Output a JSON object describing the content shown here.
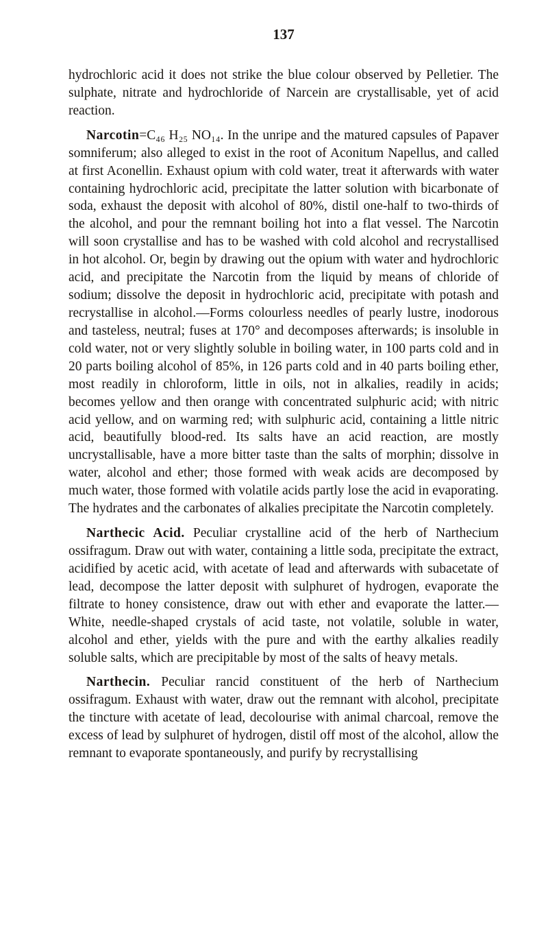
{
  "page_number": "137",
  "typography": {
    "body_fontsize_pt": 15,
    "heading_weight": "bold",
    "line_height": 1.33,
    "text_color": "#1a1612",
    "background_color": "#ffffff"
  },
  "paragraphs": [
    {
      "head": "",
      "text": "hydrochloric acid it does not strike the blue colour observed by Pelletier. The sulphate, nitrate and hydrochloride of Narcein are crystallisable, yet of acid reaction."
    },
    {
      "head": "Narcotin",
      "text": "=C₄₆ H₂₅ NO₁₄. In the unripe and the matured capsules of Papaver somniferum; also alleged to exist in the root of Aconitum Napellus, and called at first Aconellin. Exhaust opium with cold water, treat it afterwards with water containing hydro­chloric acid, precipitate the latter solution with bicarbonate of soda, exhaust the deposit with alcohol of 80%, distil one-half to two-thirds of the alcohol, and pour the remnant boiling hot into a flat vessel. The Narcotin will soon crystallise and has to be washed with cold alcohol and recrystallised in hot alcohol. Or, begin by drawing out the opium with water and hydrochloric acid, and precipitate the Narcotin from the liquid by means of chloride of sodium; dissolve the deposit in hydrochloric acid, precipitate with potash and recrystallise in alcohol.—Forms colourless needles of pearly lustre, inodorous and tasteless, neutral; fuses at 170° and decomposes afterwards; is insoluble in cold water, not or very slightly soluble in boiling water, in 100 parts cold and in 20 parts boiling alcohol of 85%, in 126 parts cold and in 40 parts boiling ether, most readily in chloroform, little in oils, not in alkalies, readily in acids; becomes yellow and then orange with concentrated sulphuric acid; with nitric acid yellow, and on warming red; with sulphuric acid, containing a little nitric acid, beautifully blood-red. Its salts have an acid reaction, are mostly uncrystallisable, have a more bitter taste than the salts of morphin; dissolve in water, alcohol and ether; those formed with weak acids are decomposed by much water, those formed with volatile acids partly lose the acid in evaporating. The hydrates and the carbon­ates of alkalies precipitate the Narcotin completely."
    },
    {
      "head": "Narthecic Acid.",
      "text": " Peculiar crystalline acid of the herb of Narthecium ossifragum. Draw out with water, containing a little soda, precipitate the extract, acidified by acetic acid, with acetate of lead and afterwards with subacetate of lead, decompose the latter deposit with sulphuret of hydrogen, evaporate the filtrate to honey consistence, draw out with ether and evaporate the latter.—White, needle-shaped crystals of acid taste, not volatile, soluble in water, alcohol and ether, yields with the pure and with the earthy alkalies readily soluble salts, which are precipitable by most of the salts of heavy metals."
    },
    {
      "head": "Narthecin.",
      "text": " Peculiar rancid constituent of the herb of Narthe­cium ossifragum. Exhaust with water, draw out the remnant with alcohol, precipitate the tincture with acetate of lead, de­colourise with animal charcoal, remove the excess of lead by sulphuret of hydrogen, distil off most of the alcohol, allow the remnant to evaporate spontaneously, and purify by recrystallising"
    }
  ]
}
